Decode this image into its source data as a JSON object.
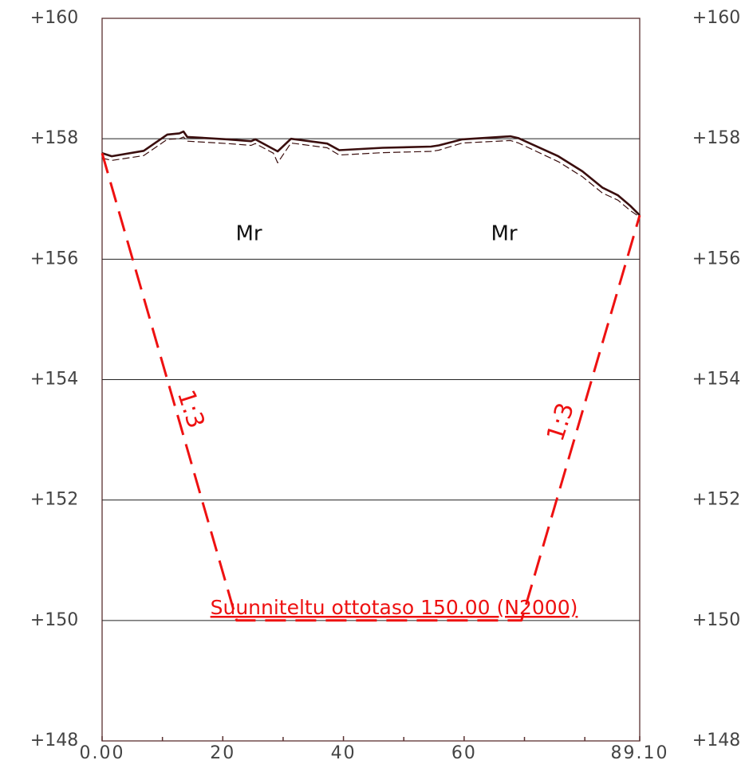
{
  "chart_data": {
    "type": "line",
    "xlim": [
      0,
      89.1
    ],
    "ylim": [
      148,
      160
    ],
    "xticks": [
      {
        "value": 0,
        "label": "0.00"
      },
      20,
      40,
      60,
      {
        "value": 89.1,
        "label": "89.10"
      }
    ],
    "xminorticks": [
      10,
      30,
      50,
      70,
      80
    ],
    "yticks": [
      {
        "value": 148,
        "label": "+148"
      },
      {
        "value": 150,
        "label": "+150"
      },
      {
        "value": 152,
        "label": "+152"
      },
      {
        "value": 154,
        "label": "+154"
      },
      {
        "value": 156,
        "label": "+156"
      },
      {
        "value": 158,
        "label": "+158"
      },
      {
        "value": 160,
        "label": "+160"
      }
    ],
    "grid": true,
    "series": [
      {
        "color": "#3a0e0e",
        "style": "solid",
        "x": [
          0,
          1.6,
          6.9,
          10.8,
          12.8,
          13.5,
          14.1,
          20.8,
          24.7,
          25.4,
          29.1,
          31.3,
          37.3,
          39.3,
          46.5,
          54.5,
          55.8,
          59.7,
          67.7,
          69.0,
          75.6,
          79.6,
          82.9,
          85.5,
          87.5,
          89.1
        ],
        "values": [
          157.76,
          157.71,
          157.8,
          158.07,
          158.09,
          158.12,
          158.03,
          157.99,
          157.96,
          157.99,
          157.79,
          158.0,
          157.92,
          157.81,
          157.85,
          157.87,
          157.89,
          157.99,
          158.04,
          158.01,
          157.71,
          157.46,
          157.19,
          157.06,
          156.89,
          156.73
        ]
      },
      {
        "color": "#3a0e0e",
        "style": "dashed",
        "x": [
          0,
          1.6,
          6.9,
          10.8,
          12.8,
          13.5,
          14.1,
          20.8,
          24.7,
          25.4,
          28.4,
          29.1,
          31.3,
          37.3,
          39.3,
          46.5,
          54.5,
          55.8,
          59.7,
          67.7,
          69.0,
          75.6,
          79.6,
          82.9,
          85.5,
          87.5,
          89.1
        ],
        "values": [
          157.68,
          157.64,
          157.72,
          157.99,
          158.0,
          158.03,
          157.96,
          157.92,
          157.89,
          157.92,
          157.76,
          157.6,
          157.93,
          157.85,
          157.73,
          157.77,
          157.79,
          157.81,
          157.93,
          157.97,
          157.93,
          157.62,
          157.37,
          157.1,
          156.98,
          156.81,
          156.7
        ]
      },
      {
        "color": "#ee1111",
        "style": "design",
        "x": [
          0,
          22.3,
          69.5,
          89.1
        ],
        "values": [
          157.76,
          150,
          150,
          156.73
        ]
      }
    ],
    "annotations": [
      "Mr",
      "Mr",
      "1:3",
      "1:3",
      "Suunniteltu ottotaso 150.00 (N2000)"
    ]
  }
}
